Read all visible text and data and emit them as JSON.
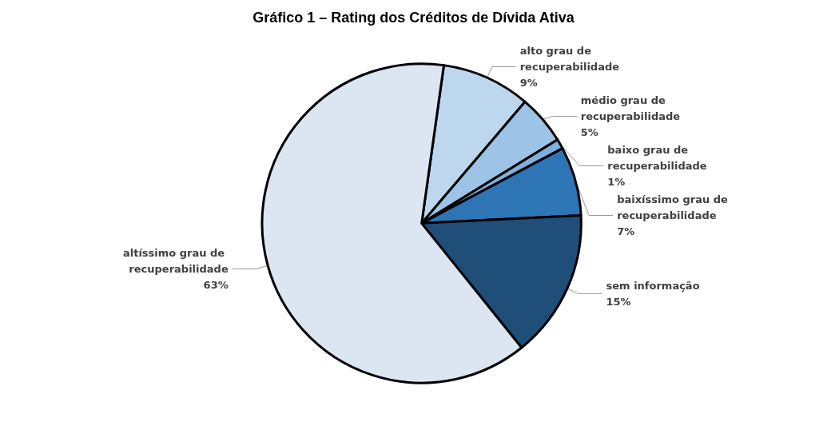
{
  "chart_data": {
    "type": "pie",
    "title": "Gráfico 1 – Rating dos Créditos de Dívida Ativa",
    "categories": [
      "alto grau de recuperabilidade",
      "médio grau de recuperabilidade",
      "baixo grau de recuperabilidade",
      "baixíssimo grau de recuperabilidade",
      "sem informação",
      "altíssimo grau de recuperabilidade"
    ],
    "values": [
      9,
      5,
      1,
      7,
      15,
      63
    ],
    "value_labels": [
      "9%",
      "5%",
      "1%",
      "7%",
      "15%",
      "63%"
    ],
    "colors": [
      "#bdd7ee",
      "#9dc3e6",
      "#7fb0dd",
      "#2e75b6",
      "#1f4e79",
      "#dce6f2"
    ],
    "legend": false
  }
}
